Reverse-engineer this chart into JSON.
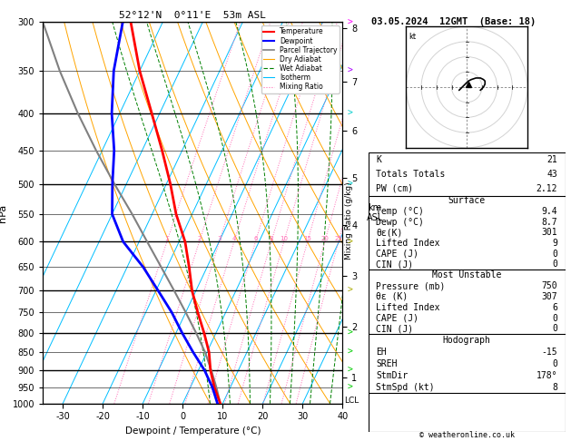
{
  "title_left": "52°12'N  0°11'E  53m ASL",
  "title_right": "03.05.2024  12GMT  (Base: 18)",
  "xlabel": "Dewpoint / Temperature (°C)",
  "ylabel_left": "hPa",
  "pressure_levels": [
    300,
    350,
    400,
    450,
    500,
    550,
    600,
    650,
    700,
    750,
    800,
    850,
    900,
    950,
    1000
  ],
  "pressure_major": [
    300,
    400,
    500,
    600,
    700,
    800,
    900,
    1000
  ],
  "km_ticks": [
    8,
    7,
    6,
    5,
    4,
    3,
    2,
    1
  ],
  "km_pressures": [
    306,
    362,
    423,
    490,
    570,
    668,
    785,
    920
  ],
  "mix_label_p": 600,
  "temp_profile_p": [
    1000,
    950,
    900,
    850,
    800,
    750,
    700,
    650,
    600,
    550,
    500,
    450,
    400,
    350,
    300
  ],
  "temp_profile_t": [
    9.4,
    6.0,
    3.0,
    0.5,
    -3.0,
    -7.0,
    -11.0,
    -14.5,
    -18.5,
    -24.0,
    -29.0,
    -35.0,
    -42.0,
    -50.0,
    -58.0
  ],
  "dewp_profile_p": [
    1000,
    950,
    900,
    850,
    800,
    750,
    700,
    650,
    600,
    550,
    500,
    450,
    400,
    350,
    300
  ],
  "dewp_profile_t": [
    8.7,
    5.5,
    1.5,
    -3.5,
    -8.5,
    -13.5,
    -19.5,
    -26.0,
    -34.0,
    -40.0,
    -43.5,
    -47.0,
    -52.0,
    -56.5,
    -60.0
  ],
  "parcel_profile_p": [
    1000,
    950,
    900,
    850,
    800,
    750,
    700,
    650,
    600,
    550,
    500,
    450,
    400,
    350,
    300
  ],
  "parcel_profile_t": [
    9.4,
    6.5,
    3.2,
    -0.5,
    -5.0,
    -10.0,
    -15.5,
    -21.5,
    -28.0,
    -35.0,
    -43.0,
    -51.5,
    -60.5,
    -70.0,
    -80.0
  ],
  "skew_factor": 45.0,
  "temp_color": "#ff0000",
  "dewp_color": "#0000ff",
  "parcel_color": "#808080",
  "dry_adiabat_color": "#ffa500",
  "wet_adiabat_color": "#008000",
  "isotherm_color": "#00bfff",
  "mix_ratio_color": "#ff69b4",
  "tmin": -35,
  "tmax": 40,
  "pmin": 300,
  "pmax": 1000,
  "isotherms": [
    -40,
    -30,
    -20,
    -10,
    0,
    10,
    20,
    30,
    40,
    -50,
    50
  ],
  "dry_adiabats_theta": [
    280,
    290,
    300,
    310,
    320,
    330,
    340,
    350,
    360,
    370,
    380,
    390,
    400,
    420
  ],
  "wet_adiabats_theta": [
    280,
    285,
    290,
    295,
    300,
    305,
    310,
    315,
    320,
    325,
    330,
    335,
    340
  ],
  "mixing_ratios": [
    1,
    2,
    3,
    4,
    6,
    8,
    10,
    15,
    20,
    25
  ],
  "lcl_pressure": 990,
  "hodo_u": [
    -2.5,
    -2.0,
    -1.5,
    -1.0,
    -0.5,
    0.0,
    0.5,
    1.5,
    3.0,
    4.5,
    5.5,
    6.0,
    6.0,
    5.5,
    4.5
  ],
  "hodo_v": [
    -1.0,
    -0.5,
    0.0,
    0.5,
    1.0,
    1.5,
    2.0,
    2.5,
    3.0,
    3.0,
    2.5,
    2.0,
    1.0,
    0.0,
    -1.0
  ],
  "hodo_storm_u": 0.5,
  "hodo_storm_v": 1.0,
  "wind_arrow_pressures": [
    300,
    350,
    400,
    500,
    600,
    700,
    800,
    850,
    900,
    950
  ],
  "wind_arrow_colors": [
    "#ff00ff",
    "#aa00ff",
    "#00cccc",
    "#00cccc",
    "#aaaa00",
    "#aaaa00",
    "#00cc00",
    "#00cc00",
    "#00cc00",
    "#00cc00"
  ],
  "stats": {
    "K": 21,
    "TotalsTotal": 43,
    "PW_cm": 2.12,
    "Surf_Temp": 9.4,
    "Surf_Dewp": 8.7,
    "Surf_ThetaE": 301,
    "Surf_LI": 9,
    "Surf_CAPE": 0,
    "Surf_CIN": 0,
    "MU_Pressure": 750,
    "MU_ThetaE": 307,
    "MU_LI": 6,
    "MU_CAPE": 0,
    "MU_CIN": 0,
    "Hodo_EH": -15,
    "Hodo_SREH": 0,
    "Hodo_StmDir": 178,
    "Hodo_StmSpd": 8
  },
  "background_color": "#ffffff"
}
